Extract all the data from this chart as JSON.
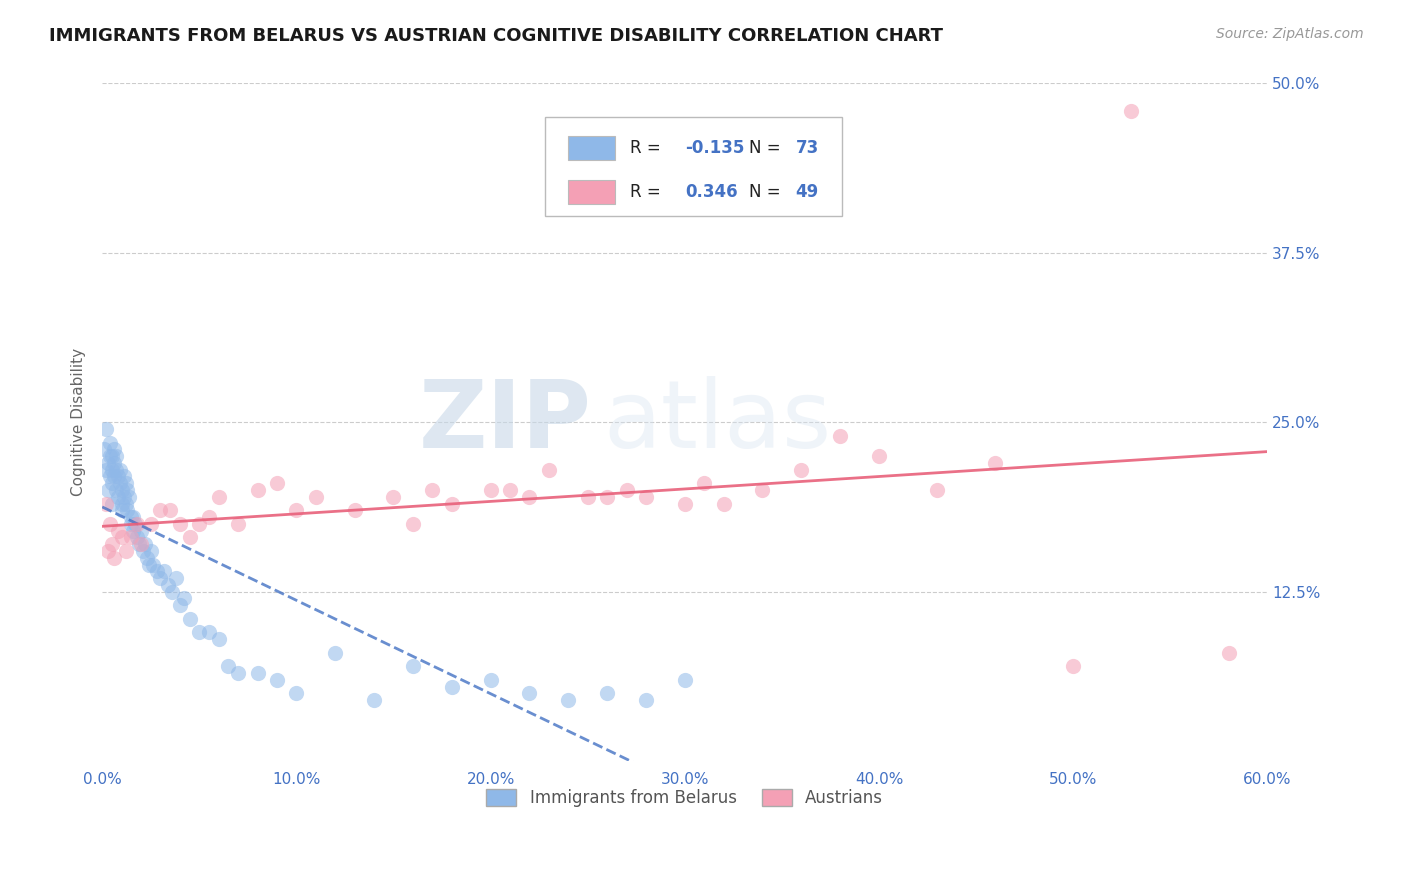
{
  "title": "IMMIGRANTS FROM BELARUS VS AUSTRIAN COGNITIVE DISABILITY CORRELATION CHART",
  "source_text": "Source: ZipAtlas.com",
  "ylabel": "Cognitive Disability",
  "series1_name": "Immigrants from Belarus",
  "series2_name": "Austrians",
  "series1_color": "#8fb8e8",
  "series2_color": "#f4a0b5",
  "series1_line_color": "#4472c4",
  "series2_line_color": "#e8607a",
  "series1_R": -0.135,
  "series1_N": 73,
  "series2_R": 0.346,
  "series2_N": 49,
  "xlim": [
    0.0,
    0.6
  ],
  "ylim": [
    0.0,
    0.5
  ],
  "grid_color": "#cccccc",
  "background_color": "#ffffff",
  "series1_x": [
    0.001,
    0.002,
    0.002,
    0.003,
    0.003,
    0.004,
    0.004,
    0.004,
    0.005,
    0.005,
    0.005,
    0.005,
    0.006,
    0.006,
    0.006,
    0.007,
    0.007,
    0.007,
    0.008,
    0.008,
    0.009,
    0.009,
    0.01,
    0.01,
    0.01,
    0.011,
    0.011,
    0.012,
    0.012,
    0.013,
    0.013,
    0.014,
    0.015,
    0.015,
    0.016,
    0.016,
    0.017,
    0.018,
    0.019,
    0.02,
    0.021,
    0.022,
    0.023,
    0.024,
    0.025,
    0.026,
    0.028,
    0.03,
    0.032,
    0.034,
    0.036,
    0.038,
    0.04,
    0.042,
    0.045,
    0.05,
    0.055,
    0.06,
    0.065,
    0.07,
    0.08,
    0.09,
    0.1,
    0.12,
    0.14,
    0.16,
    0.18,
    0.2,
    0.22,
    0.24,
    0.26,
    0.28,
    0.3
  ],
  "series1_y": [
    0.23,
    0.215,
    0.245,
    0.22,
    0.2,
    0.21,
    0.225,
    0.235,
    0.215,
    0.225,
    0.205,
    0.19,
    0.22,
    0.21,
    0.23,
    0.215,
    0.225,
    0.2,
    0.21,
    0.195,
    0.205,
    0.215,
    0.2,
    0.19,
    0.185,
    0.195,
    0.21,
    0.19,
    0.205,
    0.185,
    0.2,
    0.195,
    0.18,
    0.175,
    0.18,
    0.17,
    0.175,
    0.165,
    0.16,
    0.17,
    0.155,
    0.16,
    0.15,
    0.145,
    0.155,
    0.145,
    0.14,
    0.135,
    0.14,
    0.13,
    0.125,
    0.135,
    0.115,
    0.12,
    0.105,
    0.095,
    0.095,
    0.09,
    0.07,
    0.065,
    0.065,
    0.06,
    0.05,
    0.08,
    0.045,
    0.07,
    0.055,
    0.06,
    0.05,
    0.045,
    0.05,
    0.045,
    0.06
  ],
  "series2_x": [
    0.002,
    0.003,
    0.004,
    0.005,
    0.006,
    0.008,
    0.01,
    0.012,
    0.015,
    0.018,
    0.02,
    0.025,
    0.03,
    0.035,
    0.04,
    0.045,
    0.05,
    0.055,
    0.06,
    0.07,
    0.08,
    0.09,
    0.1,
    0.11,
    0.13,
    0.15,
    0.16,
    0.17,
    0.18,
    0.2,
    0.21,
    0.22,
    0.23,
    0.25,
    0.26,
    0.27,
    0.28,
    0.3,
    0.31,
    0.32,
    0.34,
    0.36,
    0.38,
    0.4,
    0.43,
    0.46,
    0.5,
    0.53,
    0.58
  ],
  "series2_y": [
    0.19,
    0.155,
    0.175,
    0.16,
    0.15,
    0.17,
    0.165,
    0.155,
    0.165,
    0.175,
    0.16,
    0.175,
    0.185,
    0.185,
    0.175,
    0.165,
    0.175,
    0.18,
    0.195,
    0.175,
    0.2,
    0.205,
    0.185,
    0.195,
    0.185,
    0.195,
    0.175,
    0.2,
    0.19,
    0.2,
    0.2,
    0.195,
    0.215,
    0.195,
    0.195,
    0.2,
    0.195,
    0.19,
    0.205,
    0.19,
    0.2,
    0.215,
    0.24,
    0.225,
    0.2,
    0.22,
    0.07,
    0.48,
    0.08
  ],
  "watermark_line1": "ZIP",
  "watermark_line2": "atlas"
}
